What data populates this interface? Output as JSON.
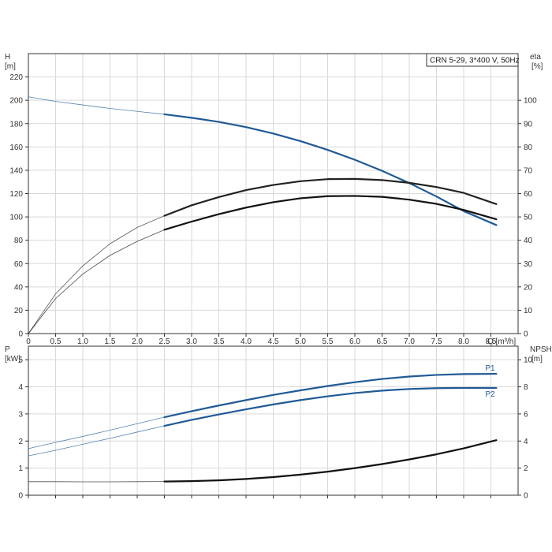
{
  "chart_data": [
    {
      "type": "line",
      "info_box": "CRN 5-29, 3*400 V, 50Hz",
      "x_axis": {
        "label": "Q [m³/h]",
        "lim": [
          0,
          9.0
        ],
        "ticks": [
          0,
          0.5,
          1.0,
          1.5,
          2.0,
          2.5,
          3.0,
          3.5,
          4.0,
          4.5,
          5.0,
          5.5,
          6.0,
          6.5,
          7.0,
          7.5,
          8.0,
          8.5
        ],
        "tick_labels": [
          "0",
          "0.5",
          "1.0",
          "1.5",
          "2.0",
          "2.5",
          "3.0",
          "3.5",
          "4.0",
          "4.5",
          "5.0",
          "5.5",
          "6.0",
          "6.5",
          "7.0",
          "7.5",
          "8.0",
          "8.5"
        ]
      },
      "y_left": {
        "label_top": "H",
        "label_unit": "[m]",
        "lim": [
          0,
          240
        ],
        "ticks": [
          0,
          20,
          40,
          60,
          80,
          100,
          120,
          140,
          160,
          180,
          200,
          220
        ]
      },
      "y_right": {
        "label_top": "eta",
        "label_unit": "[%]",
        "lim": [
          0,
          120
        ],
        "ticks": [
          0,
          10,
          20,
          30,
          40,
          50,
          60,
          70,
          80,
          90,
          100
        ]
      },
      "grid": true,
      "series": [
        {
          "axis": "left",
          "color": "#1f5a96",
          "x": [
            0,
            0.5,
            1.0,
            1.5,
            2.0,
            2.5,
            3.0,
            3.5,
            4.0,
            4.5,
            5.0,
            5.5,
            6.0,
            6.5,
            7.0,
            7.5,
            8.0,
            8.6
          ],
          "y": [
            203,
            199,
            196,
            193,
            190.5,
            188,
            185,
            181.5,
            177,
            171.5,
            165,
            157.5,
            149,
            139.5,
            129,
            117.5,
            105,
            93
          ]
        },
        {
          "axis": "right",
          "color": "#222222",
          "x": [
            0,
            0.5,
            1.0,
            1.5,
            2.0,
            2.5,
            3.0,
            3.5,
            4.0,
            4.5,
            5.0,
            5.5,
            6.0,
            6.5,
            7.0,
            7.5,
            8.0,
            8.6
          ],
          "y": [
            0,
            17,
            29,
            38.5,
            45.5,
            50.5,
            55,
            58.5,
            61.5,
            63.7,
            65.3,
            66.2,
            66.3,
            65.8,
            64.6,
            62.8,
            60.3,
            55.5
          ]
        },
        {
          "axis": "right",
          "color": "#111111",
          "x": [
            0,
            0.5,
            1.0,
            1.5,
            2.0,
            2.5,
            3.0,
            3.5,
            4.0,
            4.5,
            5.0,
            5.5,
            6.0,
            6.5,
            7.0,
            7.5,
            8.0,
            8.6
          ],
          "y": [
            0,
            15,
            25.5,
            33.5,
            39.5,
            44.5,
            48,
            51.2,
            54,
            56.3,
            58,
            58.9,
            59,
            58.6,
            57.4,
            55.6,
            53,
            49
          ]
        }
      ]
    },
    {
      "type": "line",
      "x_axis": {
        "lim": [
          0,
          9.0
        ],
        "ticks": [
          0,
          0.5,
          1.0,
          1.5,
          2.0,
          2.5,
          3.0,
          3.5,
          4.0,
          4.5,
          5.0,
          5.5,
          6.0,
          6.5,
          7.0,
          7.5,
          8.0,
          8.5
        ]
      },
      "y_left": {
        "label_top": "P",
        "label_unit": "[kW]",
        "lim": [
          0,
          5.5
        ],
        "ticks": [
          0,
          1,
          2,
          3,
          4,
          5
        ]
      },
      "y_right": {
        "label_top": "NPSH",
        "label_unit": "[m]",
        "lim": [
          0,
          11
        ],
        "ticks": [
          0,
          2,
          4,
          6,
          8,
          10
        ]
      },
      "grid": true,
      "series": [
        {
          "name": "P1",
          "axis": "left",
          "color": "#1f5a96",
          "x": [
            0,
            0.5,
            1.0,
            1.5,
            2.0,
            2.5,
            3.0,
            3.5,
            4.0,
            4.5,
            5.0,
            5.5,
            6.0,
            6.5,
            7.0,
            7.5,
            8.0,
            8.6
          ],
          "y": [
            1.72,
            1.95,
            2.17,
            2.4,
            2.64,
            2.88,
            3.1,
            3.31,
            3.51,
            3.7,
            3.87,
            4.03,
            4.17,
            4.29,
            4.38,
            4.44,
            4.47,
            4.48
          ]
        },
        {
          "name": "P2",
          "axis": "left",
          "color": "#1f5a96",
          "x": [
            0,
            0.5,
            1.0,
            1.5,
            2.0,
            2.5,
            3.0,
            3.5,
            4.0,
            4.5,
            5.0,
            5.5,
            6.0,
            6.5,
            7.0,
            7.5,
            8.0,
            8.6
          ],
          "y": [
            1.45,
            1.66,
            1.88,
            2.1,
            2.33,
            2.56,
            2.78,
            2.98,
            3.17,
            3.35,
            3.51,
            3.65,
            3.77,
            3.86,
            3.92,
            3.95,
            3.96,
            3.96
          ]
        },
        {
          "axis": "right",
          "color": "#111111",
          "x": [
            0,
            0.5,
            1.0,
            1.5,
            2.0,
            2.5,
            3.0,
            3.5,
            4.0,
            4.5,
            5.0,
            5.5,
            6.0,
            6.5,
            7.0,
            7.5,
            8.0,
            8.6
          ],
          "y": [
            1.0,
            1.0,
            0.99,
            0.99,
            1.0,
            1.01,
            1.04,
            1.1,
            1.2,
            1.34,
            1.52,
            1.74,
            2.0,
            2.3,
            2.64,
            3.02,
            3.46,
            4.06
          ]
        }
      ]
    }
  ]
}
